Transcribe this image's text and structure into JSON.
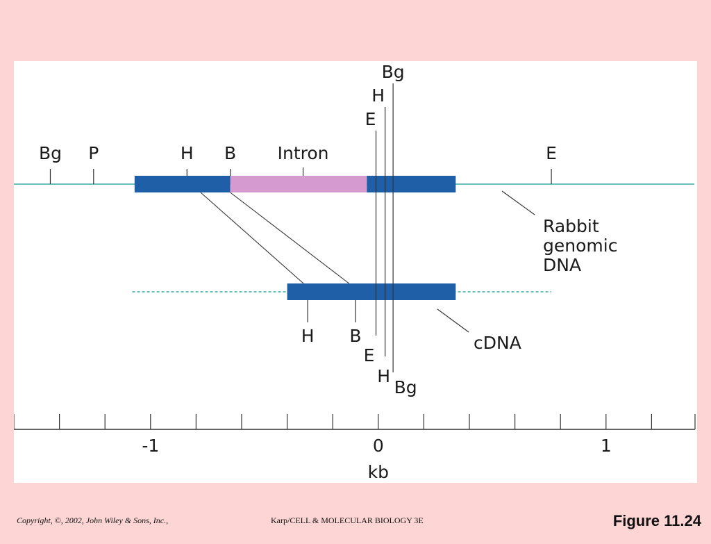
{
  "genomic": {
    "sites": [
      {
        "label": "Bg",
        "kb": -1.44
      },
      {
        "label": "P",
        "kb": -1.25
      },
      {
        "label": "H",
        "kb": -0.84
      },
      {
        "label": "B",
        "kb": -0.65
      },
      {
        "label": "E",
        "kb": 0.76
      }
    ],
    "cluster_sites": [
      {
        "label": "Bg",
        "kb": 0.065
      },
      {
        "label": "H",
        "kb": 0.03
      },
      {
        "label": "E",
        "kb": -0.01
      }
    ],
    "exon1": [
      -1.07,
      -0.65
    ],
    "intron": [
      -0.65,
      -0.05
    ],
    "exon2": [
      -0.05,
      0.34
    ],
    "intron_label": "Intron",
    "intron_label_kb": -0.33,
    "caption_lines": [
      "Rabbit",
      "genomic",
      "DNA"
    ]
  },
  "cdna": {
    "bar": [
      -0.4,
      0.34
    ],
    "dashed": [
      -1.08,
      0.76
    ],
    "sites": [
      {
        "label": "H",
        "kb": -0.31
      },
      {
        "label": "B",
        "kb": -0.1
      },
      {
        "label": "E",
        "kb": -0.01
      },
      {
        "label": "H",
        "kb": 0.03
      },
      {
        "label": "Bg",
        "kb": 0.065
      }
    ],
    "caption": "cDNA"
  },
  "connectors": [
    {
      "from_kb": -0.78,
      "to_kb": -0.31
    },
    {
      "from_kb": -0.65,
      "to_kb": -0.11
    }
  ],
  "axis": {
    "min": -1.6,
    "max": 1.4,
    "major_ticks": [
      -1,
      0,
      1
    ],
    "tick_step": 0.2,
    "label": "kb"
  },
  "colors": {
    "background": "#fdd5d5",
    "exon": "#1f5fa8",
    "intron": "#d59ad0",
    "dna_line": "#3aa6a6",
    "line": "#333333"
  },
  "footer": {
    "copyright": "Copyright, ©, 2002, John Wiley & Sons, Inc.,",
    "source": "Karp/CELL & MOLECULAR BIOLOGY 3E",
    "figure": "Figure 11.24"
  }
}
